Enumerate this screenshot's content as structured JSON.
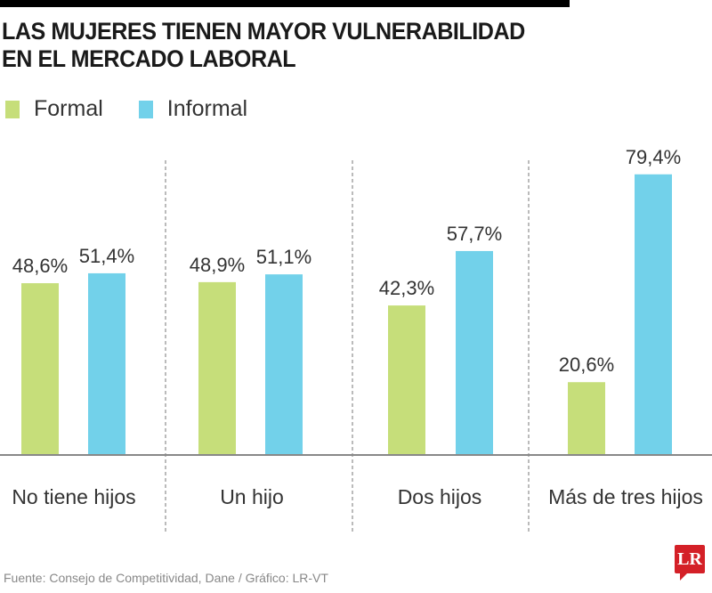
{
  "chart_data": {
    "type": "bar",
    "title": "LAS MUJERES TIENEN MAYOR VULNERABILIDAD EN EL MERCADO LABORAL",
    "title_lines": [
      "LAS MUJERES TIENEN MAYOR VULNERABILIDAD",
      "EN EL MERCADO LABORAL"
    ],
    "categories": [
      "No tiene hijos",
      "Un hijo",
      "Dos hijos",
      "Más de tres hijos"
    ],
    "series": [
      {
        "name": "Formal",
        "color": "#c6de7a",
        "values": [
          48.6,
          48.9,
          42.3,
          20.6
        ],
        "labels": [
          "48,6%",
          "48,9%",
          "42,3%",
          "20,6%"
        ]
      },
      {
        "name": "Informal",
        "color": "#72d1ea",
        "values": [
          51.4,
          51.1,
          57.7,
          79.4
        ],
        "labels": [
          "51,4%",
          "51,1%",
          "57,7%",
          "79,4%"
        ]
      }
    ],
    "xlabel": "",
    "ylabel": "",
    "ylim": [
      0,
      100
    ],
    "grid": false,
    "legend": "top-left",
    "unit": "%"
  },
  "footer": {
    "source": "Fuente: Consejo de Competitividad, Dane / Gráfico: LR-VT",
    "logo": "LR"
  }
}
